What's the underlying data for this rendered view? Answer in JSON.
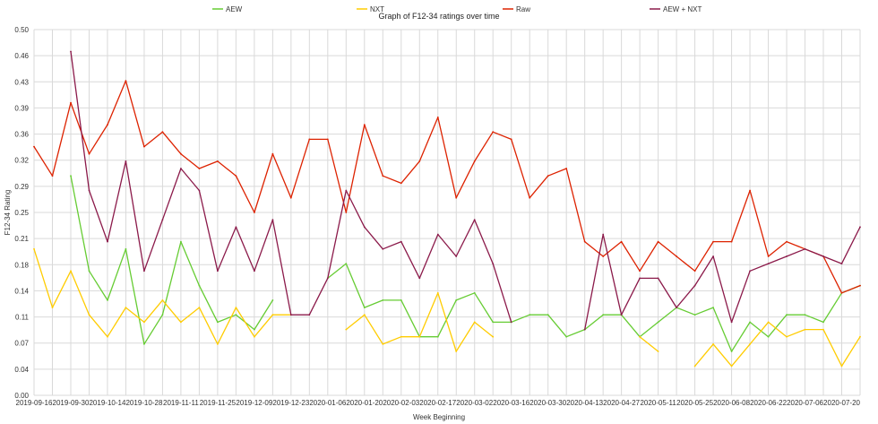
{
  "chart_data": {
    "type": "line",
    "title": "Graph of F12-34 ratings over time",
    "xlabel": "Week Beginning",
    "ylabel": "F12-34 Rating",
    "ylim": [
      0,
      0.5
    ],
    "y_ticks": [
      "0.00",
      "0.04",
      "0.07",
      "0.11",
      "0.14",
      "0.18",
      "0.21",
      "0.25",
      "0.29",
      "0.32",
      "0.36",
      "0.39",
      "0.43",
      "0.46",
      "0.50"
    ],
    "x_tick_labels": [
      "2019-09-16",
      "2019-09-30",
      "2019-10-14",
      "2019-10-28",
      "2019-11-11",
      "2019-11-25",
      "2019-12-09",
      "2019-12-23",
      "2020-01-06",
      "2020-01-20",
      "2020-02-03",
      "2020-02-17",
      "2020-03-02",
      "2020-03-16",
      "2020-03-30",
      "2020-04-13",
      "2020-04-27",
      "2020-05-11",
      "2020-05-25",
      "2020-06-08",
      "2020-06-22",
      "2020-07-06",
      "2020-07-20"
    ],
    "grid": true,
    "legend_position": "top",
    "categories": [
      "2019-09-16",
      "2019-09-23",
      "2019-09-30",
      "2019-10-07",
      "2019-10-14",
      "2019-10-21",
      "2019-10-28",
      "2019-11-04",
      "2019-11-11",
      "2019-11-18",
      "2019-11-25",
      "2019-12-02",
      "2019-12-09",
      "2019-12-16",
      "2019-12-23",
      "2019-12-30",
      "2020-01-06",
      "2020-01-13",
      "2020-01-20",
      "2020-01-27",
      "2020-02-03",
      "2020-02-10",
      "2020-02-17",
      "2020-02-24",
      "2020-03-02",
      "2020-03-09",
      "2020-03-16",
      "2020-03-23",
      "2020-03-30",
      "2020-04-06",
      "2020-04-13",
      "2020-04-20",
      "2020-04-27",
      "2020-05-04",
      "2020-05-11",
      "2020-05-18",
      "2020-05-25",
      "2020-06-01",
      "2020-06-08",
      "2020-06-15",
      "2020-06-22",
      "2020-06-29",
      "2020-07-06",
      "2020-07-13",
      "2020-07-20",
      "2020-07-27"
    ],
    "series": [
      {
        "name": "AEW",
        "color": "#66cc33",
        "values": [
          null,
          null,
          0.3,
          0.17,
          0.13,
          0.2,
          0.07,
          0.11,
          0.21,
          0.15,
          0.1,
          0.11,
          0.09,
          0.13,
          null,
          null,
          0.16,
          0.18,
          0.12,
          0.13,
          0.13,
          0.08,
          0.08,
          0.13,
          0.14,
          0.1,
          0.1,
          0.11,
          0.11,
          0.08,
          0.09,
          0.11,
          0.11,
          0.08,
          0.1,
          0.12,
          0.11,
          0.12,
          0.06,
          0.1,
          0.08,
          0.11,
          0.11,
          0.1,
          0.14,
          0.15
        ]
      },
      {
        "name": "NXT",
        "color": "#ffcc00",
        "values": [
          0.2,
          0.12,
          0.17,
          0.11,
          0.08,
          0.12,
          0.1,
          0.13,
          0.1,
          0.12,
          0.07,
          0.12,
          0.08,
          0.11,
          0.11,
          null,
          null,
          0.09,
          0.11,
          0.07,
          0.08,
          0.08,
          0.14,
          0.06,
          0.1,
          0.08,
          null,
          null,
          null,
          null,
          null,
          null,
          null,
          0.08,
          0.06,
          null,
          0.04,
          0.07,
          0.04,
          0.07,
          0.1,
          0.08,
          0.09,
          0.09,
          0.04,
          0.08
        ]
      },
      {
        "name": "Raw",
        "color": "#dd2200",
        "values": [
          0.34,
          0.3,
          0.4,
          0.33,
          0.37,
          0.43,
          0.34,
          0.36,
          0.33,
          0.31,
          0.32,
          0.3,
          0.25,
          0.33,
          0.27,
          0.35,
          0.35,
          0.25,
          0.37,
          0.3,
          0.29,
          0.32,
          0.38,
          0.27,
          0.32,
          0.36,
          0.35,
          0.27,
          0.3,
          0.31,
          0.21,
          0.19,
          0.21,
          0.17,
          0.21,
          0.19,
          0.17,
          0.21,
          0.21,
          0.28,
          0.19,
          0.21,
          0.2,
          0.19,
          0.14,
          0.15
        ]
      },
      {
        "name": "AEW + NXT",
        "color": "#8b1a4a",
        "values": [
          null,
          null,
          0.47,
          0.28,
          0.21,
          0.32,
          0.17,
          0.24,
          0.31,
          0.28,
          0.17,
          0.23,
          0.17,
          0.24,
          0.11,
          0.11,
          0.16,
          0.28,
          0.23,
          0.2,
          0.21,
          0.16,
          0.22,
          0.19,
          0.24,
          0.18,
          0.1,
          null,
          null,
          null,
          0.09,
          0.22,
          0.11,
          0.16,
          0.16,
          0.12,
          0.15,
          0.19,
          0.1,
          0.17,
          0.18,
          0.19,
          0.2,
          0.19,
          0.18,
          0.23
        ]
      }
    ]
  }
}
